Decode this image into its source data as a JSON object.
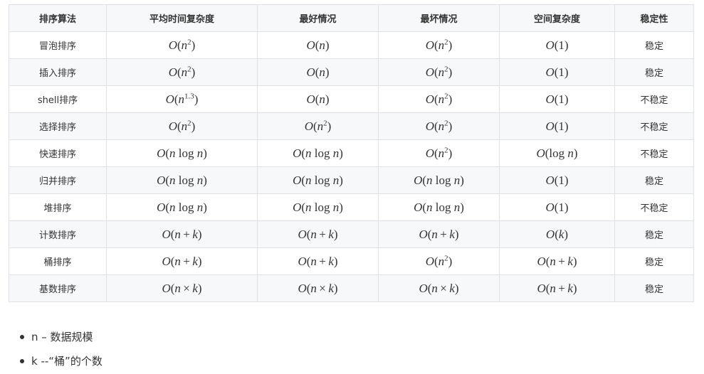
{
  "table": {
    "headers": [
      "排序算法",
      "平均时间复杂度",
      "最好情况",
      "最坏情况",
      "空间复杂度",
      "稳定性"
    ],
    "rows": [
      {
        "name": "冒泡排序",
        "avg": "O(n^2)",
        "best": "O(n)",
        "worst": "O(n^2)",
        "space": "O(1)",
        "stability": "稳定"
      },
      {
        "name": "插入排序",
        "avg": "O(n^2)",
        "best": "O(n)",
        "worst": "O(n^2)",
        "space": "O(1)",
        "stability": "稳定"
      },
      {
        "name": "shell排序",
        "avg": "O(n^1.3)",
        "best": "O(n)",
        "worst": "O(n^2)",
        "space": "O(1)",
        "stability": "不稳定"
      },
      {
        "name": "选择排序",
        "avg": "O(n^2)",
        "best": "O(n^2)",
        "worst": "O(n^2)",
        "space": "O(1)",
        "stability": "不稳定"
      },
      {
        "name": "快速排序",
        "avg": "O(n log n)",
        "best": "O(n log n)",
        "worst": "O(n^2)",
        "space": "O(log n)",
        "stability": "不稳定"
      },
      {
        "name": "归并排序",
        "avg": "O(n log n)",
        "best": "O(n log n)",
        "worst": "O(n log n)",
        "space": "O(1)",
        "stability": "稳定"
      },
      {
        "name": "堆排序",
        "avg": "O(n log n)",
        "best": "O(n log n)",
        "worst": "O(n log n)",
        "space": "O(1)",
        "stability": "不稳定"
      },
      {
        "name": "计数排序",
        "avg": "O(n + k)",
        "best": "O(n + k)",
        "worst": "O(n + k)",
        "space": "O(k)",
        "stability": "稳定"
      },
      {
        "name": "桶排序",
        "avg": "O(n + k)",
        "best": "O(n + k)",
        "worst": "O(n^2)",
        "space": "O(n + k)",
        "stability": "稳定"
      },
      {
        "name": "基数排序",
        "avg": "O(n × k)",
        "best": "O(n × k)",
        "worst": "O(n × k)",
        "space": "O(n + k)",
        "stability": "稳定"
      }
    ]
  },
  "notes": [
    "n – 数据规模",
    "k --“桶”的个数"
  ]
}
